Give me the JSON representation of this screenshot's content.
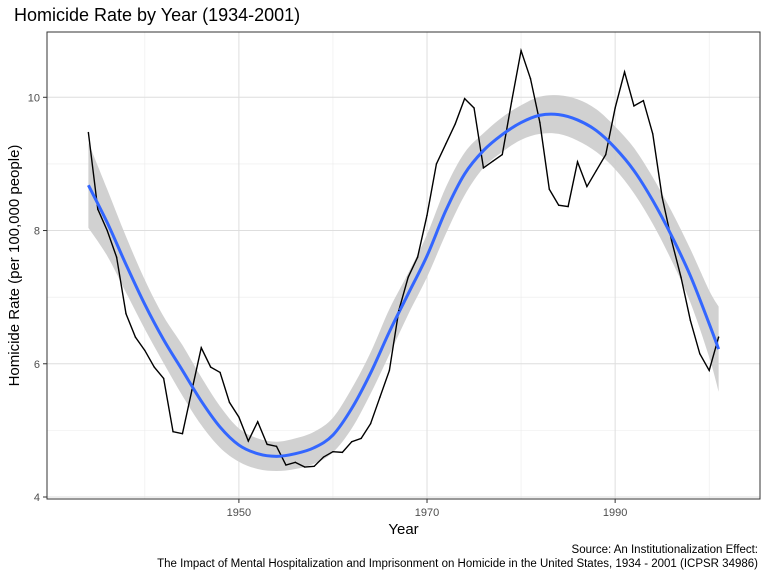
{
  "chart_data": {
    "type": "line",
    "title": "Homicide Rate by Year (1934-2001)",
    "xlabel": "Year",
    "ylabel": "Homicide Rate (per 100,000 people)",
    "caption_lines": [
      "Source: An Institutionalization Effect:",
      "The Impact of Mental Hospitalization and Imprisonment on Homicide in the United States, 1934 - 2001 (ICPSR 34986)"
    ],
    "xlim": [
      1929.6,
      2005.4
    ],
    "ylim": [
      3.97,
      10.98
    ],
    "x_ticks": [
      1950,
      1970,
      1990
    ],
    "x_minor_ticks": [
      1940,
      1960,
      1980,
      2000
    ],
    "y_ticks": [
      4,
      6,
      8,
      10
    ],
    "y_minor_ticks": [
      5,
      7,
      9
    ],
    "grid": true,
    "series": [
      {
        "role": "observed",
        "color": "#000000",
        "x": [
          1934,
          1935,
          1936,
          1937,
          1938,
          1939,
          1940,
          1941,
          1942,
          1943,
          1944,
          1945,
          1946,
          1947,
          1948,
          1949,
          1950,
          1951,
          1952,
          1953,
          1954,
          1955,
          1956,
          1957,
          1958,
          1959,
          1960,
          1961,
          1962,
          1963,
          1964,
          1965,
          1966,
          1967,
          1968,
          1969,
          1970,
          1971,
          1972,
          1973,
          1974,
          1975,
          1976,
          1977,
          1978,
          1979,
          1980,
          1981,
          1982,
          1983,
          1984,
          1985,
          1986,
          1987,
          1988,
          1989,
          1990,
          1991,
          1992,
          1993,
          1994,
          1995,
          1996,
          1997,
          1998,
          1999,
          2000,
          2001
        ],
        "y": [
          9.47,
          8.32,
          8.0,
          7.6,
          6.75,
          6.4,
          6.2,
          5.95,
          5.78,
          4.98,
          4.95,
          5.6,
          6.24,
          5.95,
          5.87,
          5.42,
          5.2,
          4.84,
          5.13,
          4.79,
          4.76,
          4.48,
          4.52,
          4.45,
          4.46,
          4.6,
          4.68,
          4.67,
          4.83,
          4.88,
          5.1,
          5.5,
          5.9,
          6.8,
          7.3,
          7.6,
          8.23,
          9.0,
          9.3,
          9.6,
          9.98,
          9.84,
          8.94,
          9.04,
          9.14,
          9.94,
          10.7,
          10.28,
          9.62,
          8.62,
          8.38,
          8.36,
          9.03,
          8.66,
          8.9,
          9.14,
          9.84,
          10.38,
          9.87,
          9.95,
          9.45,
          8.5,
          7.85,
          7.3,
          6.65,
          6.15,
          5.9,
          6.4
        ]
      },
      {
        "role": "smooth",
        "color": "#3366FF",
        "band_color": "#cccccc",
        "x": [
          1934,
          1936,
          1938,
          1940,
          1942,
          1944,
          1946,
          1948,
          1950,
          1952,
          1954,
          1956,
          1958,
          1960,
          1962,
          1964,
          1966,
          1968,
          1970,
          1972,
          1974,
          1976,
          1978,
          1980,
          1982,
          1984,
          1986,
          1988,
          1990,
          1992,
          1994,
          1996,
          1998,
          2000,
          2001
        ],
        "y": [
          8.68,
          8.12,
          7.49,
          6.89,
          6.36,
          5.9,
          5.44,
          5.05,
          4.78,
          4.65,
          4.61,
          4.65,
          4.74,
          4.93,
          5.33,
          5.86,
          6.48,
          7.05,
          7.62,
          8.3,
          8.85,
          9.2,
          9.44,
          9.62,
          9.73,
          9.74,
          9.66,
          9.5,
          9.24,
          8.9,
          8.45,
          7.92,
          7.32,
          6.6,
          6.22
        ],
        "lower": [
          8.04,
          7.62,
          7.07,
          6.52,
          6.01,
          5.52,
          5.08,
          4.74,
          4.53,
          4.42,
          4.39,
          4.42,
          4.5,
          4.67,
          5.03,
          5.55,
          6.14,
          6.74,
          7.3,
          7.95,
          8.53,
          8.94,
          9.18,
          9.36,
          9.45,
          9.45,
          9.35,
          9.18,
          8.92,
          8.56,
          8.1,
          7.55,
          6.92,
          6.1,
          5.58
        ],
        "upper": [
          9.32,
          8.62,
          7.91,
          7.26,
          6.71,
          6.28,
          5.8,
          5.36,
          5.03,
          4.88,
          4.83,
          4.88,
          4.98,
          5.19,
          5.63,
          6.17,
          6.82,
          7.36,
          7.94,
          8.65,
          9.17,
          9.46,
          9.7,
          9.88,
          10.01,
          10.03,
          9.97,
          9.82,
          9.56,
          9.24,
          8.8,
          8.29,
          7.72,
          7.1,
          6.86
        ]
      }
    ]
  }
}
